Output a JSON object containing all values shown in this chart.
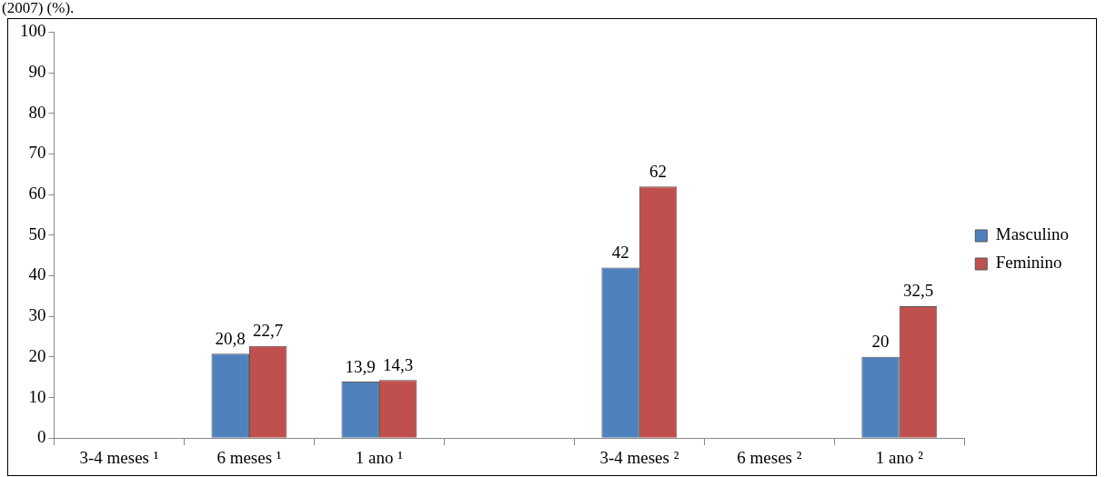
{
  "chart_data": {
    "type": "bar",
    "annotations": [
      "(2007) (%)."
    ],
    "categories": [
      "3-4 meses ¹",
      "6 meses ¹",
      "1 ano ¹",
      null,
      "3-4 meses ²",
      "6 meses ²",
      "1 ano ²"
    ],
    "series": [
      {
        "name": "Masculino",
        "color": "#4f81bd",
        "values": [
          null,
          20.8,
          13.9,
          null,
          42,
          null,
          20
        ],
        "value_labels": [
          null,
          "20,8",
          "13,9",
          null,
          "42",
          null,
          "20"
        ]
      },
      {
        "name": "Feminino",
        "color": "#c0504d",
        "values": [
          null,
          22.7,
          14.3,
          null,
          62,
          null,
          32.5
        ],
        "value_labels": [
          null,
          "22,7",
          "14,3",
          null,
          "62",
          null,
          "32,5"
        ]
      }
    ],
    "ylim": [
      0,
      100
    ],
    "yticks": [
      0,
      10,
      20,
      30,
      40,
      50,
      60,
      70,
      80,
      90,
      100
    ],
    "legend": "right"
  }
}
